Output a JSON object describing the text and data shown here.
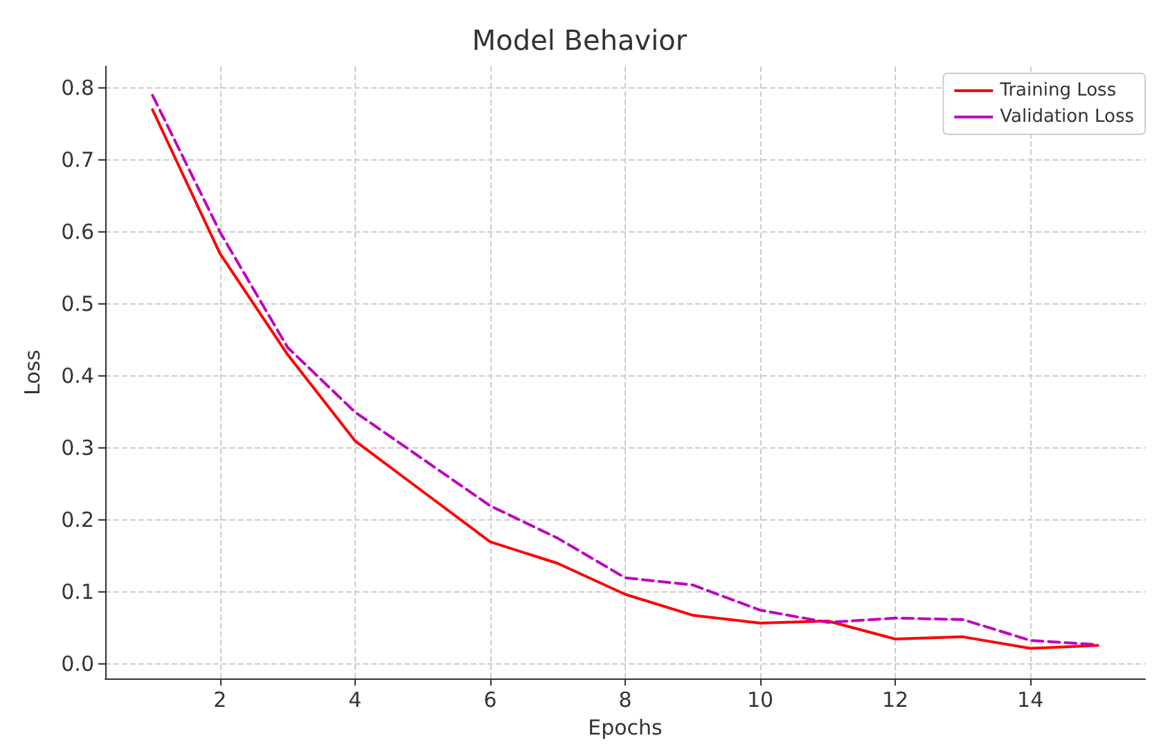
{
  "chart_data": {
    "type": "line",
    "title": "Model Behavior",
    "xlabel": "Epochs",
    "ylabel": "Loss",
    "x": [
      1,
      2,
      3,
      4,
      5,
      6,
      7,
      8,
      9,
      10,
      11,
      12,
      13,
      14,
      15
    ],
    "series": [
      {
        "name": "Training Loss",
        "color": "#ff0000",
        "line_style": "solid",
        "values": [
          0.77,
          0.57,
          0.43,
          0.31,
          0.24,
          0.17,
          0.14,
          0.097,
          0.068,
          0.057,
          0.06,
          0.035,
          0.038,
          0.022,
          0.026
        ]
      },
      {
        "name": "Validation Loss",
        "color": "#bf00bf",
        "line_style": "dashed",
        "values": [
          0.79,
          0.6,
          0.44,
          0.35,
          0.285,
          0.22,
          0.175,
          0.12,
          0.11,
          0.075,
          0.058,
          0.064,
          0.062,
          0.033,
          0.027
        ]
      }
    ],
    "xlim": [
      0.3,
      15.7
    ],
    "xticks": [
      2,
      4,
      6,
      8,
      10,
      12,
      14
    ],
    "ylim": [
      -0.02,
      0.83
    ],
    "yticks": [
      {
        "value": 0,
        "label": "0.0"
      },
      0.1,
      0.2,
      0.3,
      0.4,
      0.5,
      0.6,
      0.7,
      0.8
    ],
    "grid": true,
    "legend": "top right",
    "marker": "none"
  }
}
